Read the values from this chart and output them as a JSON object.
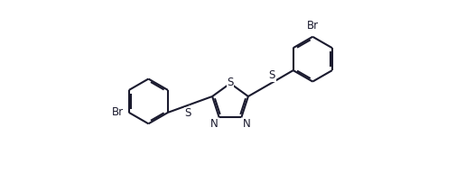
{
  "background_color": "#ffffff",
  "line_color": "#1a1a2e",
  "line_width": 1.5,
  "font_size": 8.5,
  "fig_width": 5.05,
  "fig_height": 2.02,
  "dpi": 100,
  "xlim": [
    0,
    10
  ],
  "ylim": [
    0,
    4
  ]
}
